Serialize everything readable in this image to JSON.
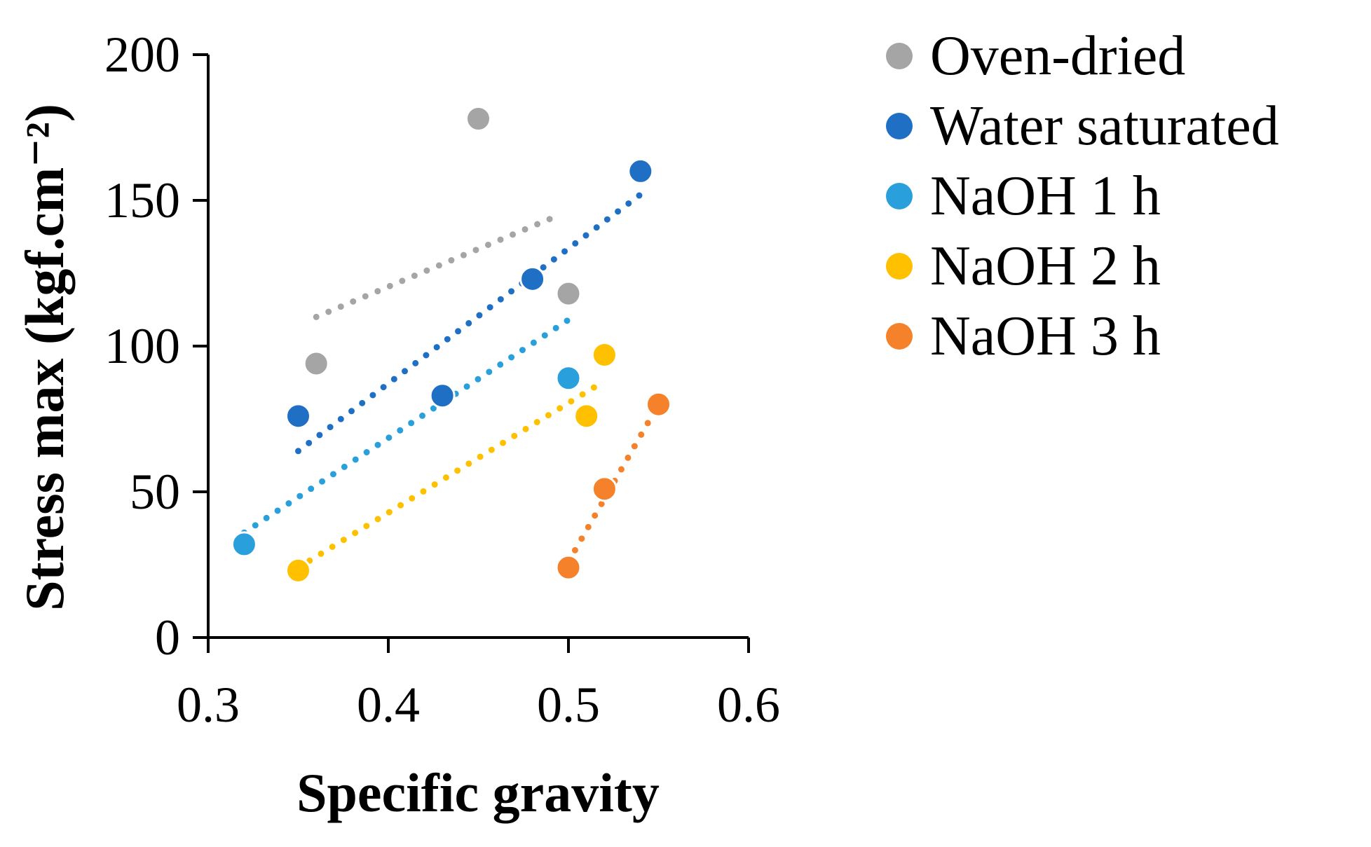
{
  "chart_data": {
    "type": "scatter",
    "title": "",
    "xlabel": "Specific gravity",
    "ylabel": "Stress max (kgf.cm⁻²)",
    "xlim": [
      0.3,
      0.6
    ],
    "ylim": [
      0,
      200
    ],
    "x_ticks": [
      "0.3",
      "0.4",
      "0.5",
      "0.6"
    ],
    "y_ticks": [
      "0",
      "50",
      "100",
      "150",
      "200"
    ],
    "grid": false,
    "legend_position": "right",
    "trendline": "linear, dotted",
    "series": [
      {
        "name": "Oven-dried",
        "color": "#a5a5a5",
        "points": [
          [
            0.36,
            94
          ],
          [
            0.45,
            178
          ],
          [
            0.5,
            118
          ]
        ],
        "trend": [
          [
            0.36,
            110
          ],
          [
            0.495,
            145
          ]
        ]
      },
      {
        "name": "Water saturated",
        "color": "#1f6fc5",
        "points": [
          [
            0.35,
            76
          ],
          [
            0.43,
            83
          ],
          [
            0.48,
            123
          ],
          [
            0.54,
            160
          ]
        ],
        "trend": [
          [
            0.35,
            64
          ],
          [
            0.54,
            152
          ]
        ]
      },
      {
        "name": "NaOH 1 h",
        "color": "#29a0dc",
        "points": [
          [
            0.32,
            32
          ],
          [
            0.5,
            89
          ]
        ],
        "trend": [
          [
            0.32,
            36
          ],
          [
            0.5,
            109
          ]
        ]
      },
      {
        "name": "NaOH 2 h",
        "color": "#ffc000",
        "points": [
          [
            0.35,
            23
          ],
          [
            0.51,
            76
          ],
          [
            0.52,
            97
          ]
        ],
        "trend": [
          [
            0.35,
            24
          ],
          [
            0.52,
            88
          ]
        ]
      },
      {
        "name": "NaOH 3 h",
        "color": "#f5822a",
        "points": [
          [
            0.5,
            24
          ],
          [
            0.52,
            51
          ],
          [
            0.55,
            80
          ]
        ],
        "trend": [
          [
            0.5,
            26
          ],
          [
            0.55,
            80
          ]
        ]
      }
    ]
  }
}
